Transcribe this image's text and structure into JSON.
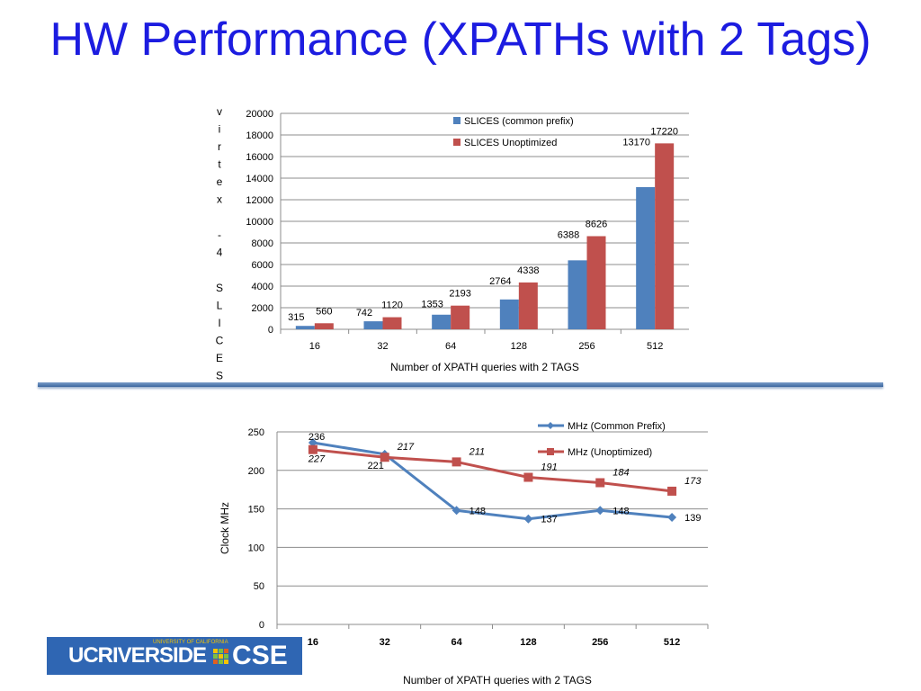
{
  "slide": {
    "title": "HW Performance (XPATHs with 2 Tags)"
  },
  "logo": {
    "uc": "UC",
    "riverside": "RIVERSIDE",
    "university": "UNIVERSITY OF CALIFORNIA",
    "cse": "CSE"
  },
  "chart_data": [
    {
      "type": "bar",
      "categories": [
        "16",
        "32",
        "64",
        "128",
        "256",
        "512"
      ],
      "series": [
        {
          "name": "SLICES (common prefix)",
          "values": [
            315,
            742,
            1353,
            2764,
            6388,
            13170
          ],
          "color": "#4f81bd"
        },
        {
          "name": "SLICES Unoptimized",
          "values": [
            560,
            1120,
            2193,
            4338,
            8626,
            17220
          ],
          "color": "#c0504d"
        }
      ],
      "xlabel": "Number of XPATH queries with 2 TAGS",
      "ylabel": "virtex -4 SLICES",
      "ylim": [
        0,
        20000
      ],
      "yticks": [
        0,
        2000,
        4000,
        6000,
        8000,
        10000,
        12000,
        14000,
        16000,
        18000,
        20000
      ],
      "grid": true,
      "legend": "top-right",
      "data_labels": true
    },
    {
      "type": "line",
      "categories": [
        "16",
        "32",
        "64",
        "128",
        "256",
        "512"
      ],
      "series": [
        {
          "name": "MHz (Common Prefix)",
          "values": [
            236,
            221,
            148,
            137,
            148,
            139
          ],
          "color": "#4f81bd",
          "marker": "diamond"
        },
        {
          "name": "MHz (Unoptimized)",
          "values": [
            227,
            217,
            211,
            191,
            184,
            173
          ],
          "color": "#c0504d",
          "marker": "square"
        }
      ],
      "xlabel": "Number of XPATH queries with 2 TAGS",
      "ylabel": "Clock MHz",
      "ylim": [
        0,
        250
      ],
      "yticks": [
        0,
        50,
        100,
        150,
        200,
        250
      ],
      "grid": true,
      "legend": "top-right",
      "data_labels": true
    }
  ]
}
